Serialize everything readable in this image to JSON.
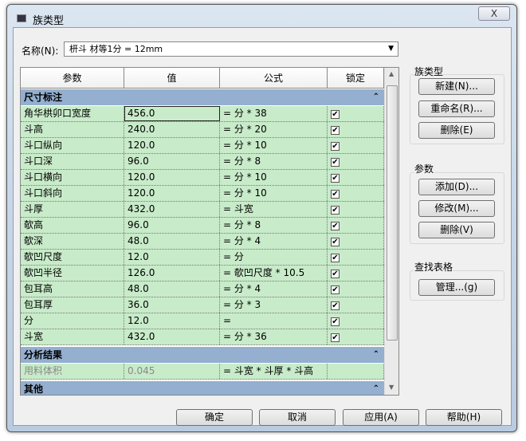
{
  "window": {
    "title": "族类型",
    "close_label": "X"
  },
  "name_label": "名称(N):",
  "name_value": "枅斗 材等1分 = 12mm",
  "table": {
    "columns": [
      "参数",
      "值",
      "公式",
      "锁定"
    ],
    "sections": [
      {
        "title": "尺寸标注",
        "rows": [
          {
            "param": "角华栱卯口宽度",
            "value": "456.0",
            "formula": "= 分 * 38",
            "locked": true
          },
          {
            "param": "斗高",
            "value": "240.0",
            "formula": "= 分 * 20",
            "locked": true
          },
          {
            "param": "斗口纵向",
            "value": "120.0",
            "formula": "= 分 * 10",
            "locked": true
          },
          {
            "param": "斗口深",
            "value": "96.0",
            "formula": "= 分 * 8",
            "locked": true
          },
          {
            "param": "斗口横向",
            "value": "120.0",
            "formula": "= 分 * 10",
            "locked": true
          },
          {
            "param": "斗口斜向",
            "value": "120.0",
            "formula": "= 分 * 10",
            "locked": true
          },
          {
            "param": "斗厚",
            "value": "432.0",
            "formula": "= 斗宽",
            "locked": true
          },
          {
            "param": "欹高",
            "value": "96.0",
            "formula": "= 分 * 8",
            "locked": true
          },
          {
            "param": "欹深",
            "value": "48.0",
            "formula": "= 分 * 4",
            "locked": true
          },
          {
            "param": "欹凹尺度",
            "value": "12.0",
            "formula": "= 分",
            "locked": true
          },
          {
            "param": "欹凹半径",
            "value": "126.0",
            "formula": "= 欹凹尺度 * 10.5",
            "locked": true
          },
          {
            "param": "包耳高",
            "value": "48.0",
            "formula": "= 分 * 4",
            "locked": true
          },
          {
            "param": "包耳厚",
            "value": "36.0",
            "formula": "= 分 * 3",
            "locked": true
          },
          {
            "param": "分",
            "value": "12.0",
            "formula": "=",
            "locked": true
          },
          {
            "param": "斗宽",
            "value": "432.0",
            "formula": "= 分 * 36",
            "locked": true
          }
        ]
      },
      {
        "title": "分析结果",
        "rows": [
          {
            "param": "用料体积",
            "value": "0.045",
            "formula": "= 斗宽 * 斗厚 * 斗高",
            "locked": null
          }
        ]
      },
      {
        "title": "其他",
        "rows": []
      }
    ]
  },
  "family_types": {
    "label": "族类型",
    "new": "新建(N)...",
    "rename": "重命名(R)...",
    "delete": "删除(E)"
  },
  "parameters": {
    "label": "参数",
    "add": "添加(D)...",
    "modify": "修改(M)...",
    "delete": "删除(V)"
  },
  "lookup": {
    "label": "查找表格",
    "manage": "管理...(g)"
  },
  "footer": {
    "ok": "确定",
    "cancel": "取消",
    "apply": "应用(A)",
    "help": "帮助(H)"
  },
  "colors": {
    "section": "#94afcf",
    "row": "#c8ebc9"
  }
}
